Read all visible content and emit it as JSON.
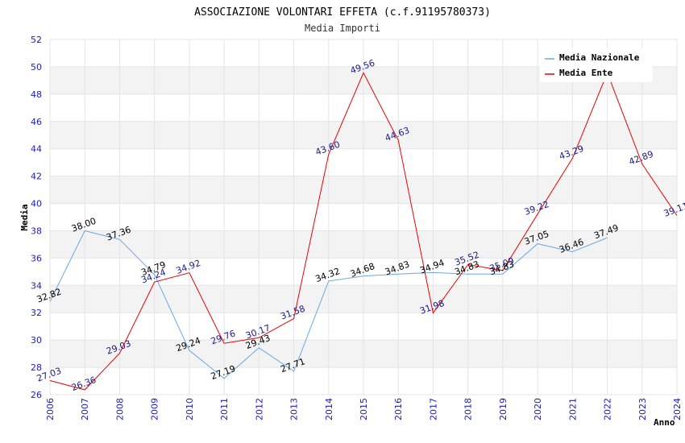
{
  "chart_data": {
    "type": "line",
    "title": "ASSOCIAZIONE VOLONTARI EFFETA (c.f.91195780373)",
    "subtitle": "Media Importi",
    "xlabel": "Anno",
    "ylabel": "Media",
    "ylim": [
      26,
      52
    ],
    "y_ticks": [
      "26",
      "28",
      "30",
      "32",
      "34",
      "36",
      "38",
      "40",
      "42",
      "44",
      "46",
      "48",
      "50",
      "52"
    ],
    "x": [
      "2006",
      "2007",
      "2008",
      "2009",
      "2010",
      "2011",
      "2012",
      "2013",
      "2014",
      "2015",
      "2016",
      "2017",
      "2018",
      "2019",
      "2020",
      "2021",
      "2022",
      "2023",
      "2024"
    ],
    "series": [
      {
        "name": "Media Nazionale",
        "color": "#6aa8e8",
        "label_color": "#000000",
        "values": [
          32.82,
          38.0,
          37.36,
          34.79,
          29.24,
          27.19,
          29.43,
          27.71,
          34.32,
          34.68,
          34.83,
          34.94,
          34.83,
          34.83,
          37.05,
          36.46,
          37.49,
          null,
          null
        ],
        "labels": [
          "32.82",
          "38.00",
          "37.36",
          "34.79",
          "29.24",
          "27.19",
          "29.43",
          "27.71",
          "34.32",
          "34.68",
          "34.83",
          "34.94",
          "34.83",
          "34.83",
          "37.05",
          "36.46",
          "37.49",
          "",
          ""
        ]
      },
      {
        "name": "Media Ente",
        "color": "#e80000",
        "label_color": "#1a1a8c",
        "values": [
          27.03,
          26.36,
          29.03,
          34.24,
          34.92,
          29.76,
          30.17,
          31.58,
          43.6,
          49.56,
          44.63,
          31.98,
          35.52,
          35.09,
          39.22,
          43.29,
          49.56,
          42.89,
          39.11
        ],
        "labels": [
          "27.03",
          "26.36",
          "29.03",
          "34.24",
          "34.92",
          "29.76",
          "30.17",
          "31.58",
          "43.60",
          "49.56",
          "44.63",
          "31.98",
          "35.52",
          "35.09",
          "39.22",
          "43.29",
          "",
          "42.89",
          "39.11"
        ]
      }
    ],
    "legend": "top-right",
    "grid": true
  }
}
